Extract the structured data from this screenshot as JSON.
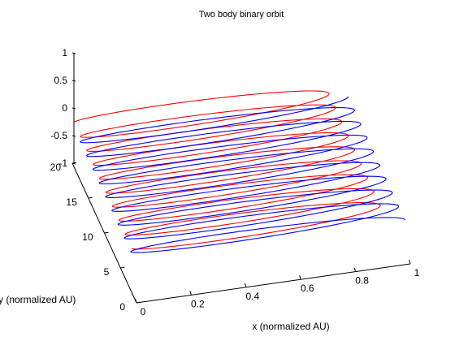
{
  "chart_data": {
    "type": "line",
    "title": "Two body binary orbit",
    "xlabel": "x (normalized AU)",
    "ylabel": "y (normalized AU)",
    "zlabel": "",
    "xlim": [
      0,
      1
    ],
    "ylim": [
      0,
      20
    ],
    "zlim": [
      -1,
      1
    ],
    "xticks": [
      "0",
      "0.2",
      "0.4",
      "0.6",
      "0.8",
      "1"
    ],
    "yticks": [
      "0",
      "5",
      "10",
      "15",
      "20"
    ],
    "zticks": [
      "-1",
      "-0.5",
      "0",
      "0.5",
      "1"
    ],
    "grid": false,
    "series": [
      {
        "color": "#ff0000",
        "x_range": [
          0,
          0.92
        ],
        "y_range": [
          1.5,
          19.5
        ],
        "z_range": [
          -0.3,
          -0.1
        ],
        "turns": 9,
        "phase": 0
      },
      {
        "color": "#0000ff",
        "x_range": [
          0,
          0.99
        ],
        "y_range": [
          0.8,
          18.5
        ],
        "z_range": [
          -0.4,
          -0.2
        ],
        "turns": 9,
        "phase": 0.5
      }
    ]
  }
}
